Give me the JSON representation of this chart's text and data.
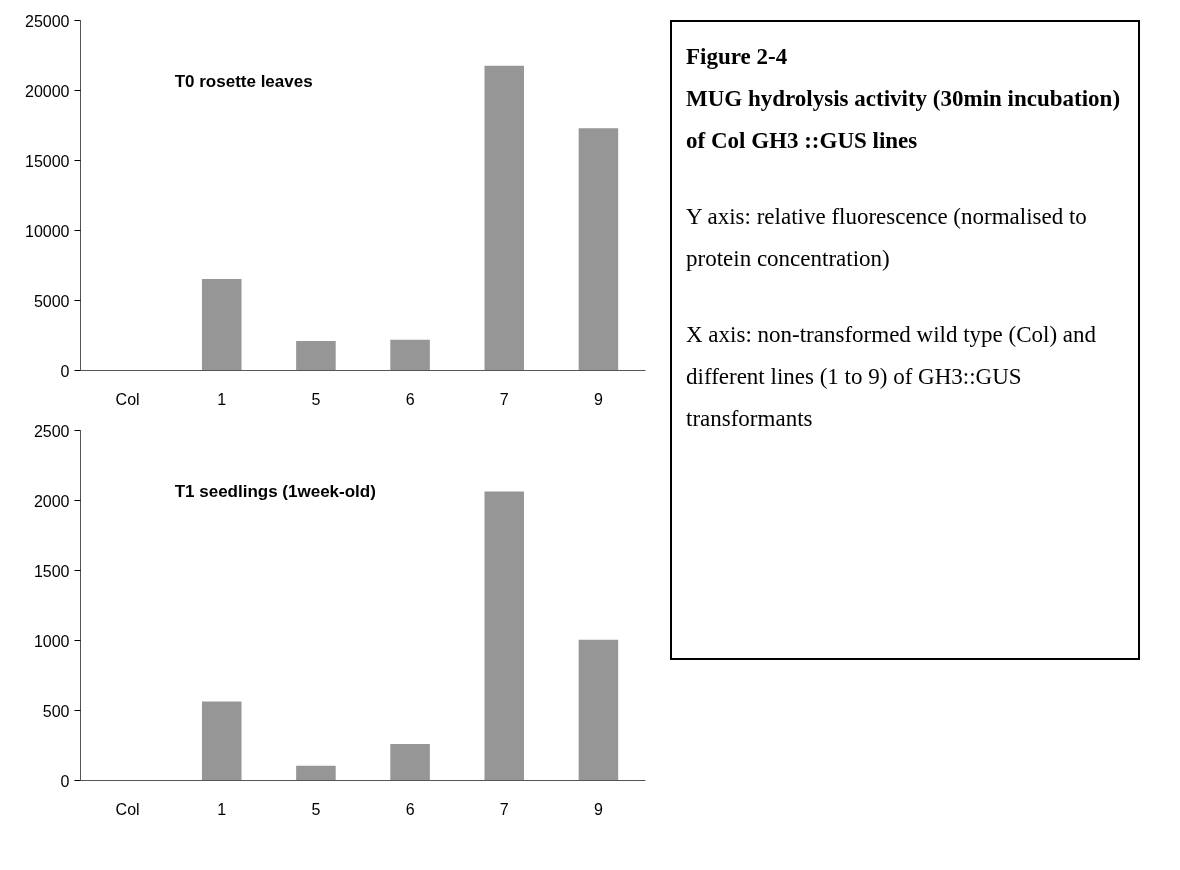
{
  "chart_data": [
    {
      "type": "bar",
      "title": "T0 rosette leaves",
      "categories": [
        "Col",
        "1",
        "5",
        "6",
        "7",
        "9"
      ],
      "values": [
        0,
        6530,
        2100,
        2200,
        21760,
        17310
      ],
      "color": "#969696",
      "ylim": [
        0,
        25000
      ],
      "yticks": [
        0,
        5000,
        10000,
        15000,
        20000,
        25000
      ],
      "grid": false
    },
    {
      "type": "bar",
      "title": "T1 seedlings (1week-old)",
      "categories": [
        "Col",
        "1",
        "5",
        "6",
        "7",
        "9"
      ],
      "values": [
        0,
        565,
        105,
        260,
        2064,
        1005
      ],
      "color": "#969696",
      "ylim": [
        0,
        2500
      ],
      "yticks": [
        0,
        500,
        1000,
        1500,
        2000,
        2500
      ],
      "grid": false
    },
    {
      "type": "other",
      "title": "Figure 2-4",
      "subtitle": "MUG hydrolysis activity (30min incubation) of Col GH3 ::GUS lines",
      "annotations": [
        "Y axis: relative fluorescence (normalised to protein concentration)",
        "X axis: non-transformed wild type (Col) and different lines (1 to 9) of GH3::GUS transformants"
      ]
    }
  ]
}
